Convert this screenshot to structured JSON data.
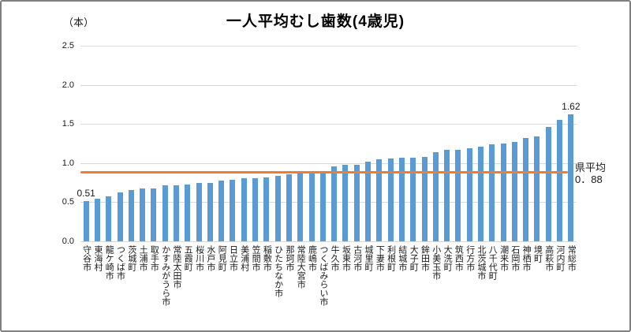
{
  "chart": {
    "title": "一人平均むし歯数(4歳児)",
    "unit_label": "（本）",
    "first_bar_label": "0.51",
    "last_bar_label": "1.62",
    "average_annotation_line1": "県平均",
    "average_annotation_line2": "0．88",
    "colors": {
      "bar": "#5b9bd5",
      "average_line": "#ed7d31",
      "gridline": "#d9d9d9",
      "border": "#7f7f7f",
      "text": "#1a1a1a"
    }
  },
  "chart_data": {
    "type": "bar",
    "title": "一人平均むし歯数(4歳児)",
    "ylabel": "（本）",
    "ylim": [
      0,
      2.5
    ],
    "ytick_values": [
      0.0,
      0.5,
      1.0,
      1.5,
      2.0,
      2.5
    ],
    "ytick_labels": [
      "0.0",
      "0.5",
      "1.0",
      "1.5",
      "2.0",
      "2.5"
    ],
    "grid": true,
    "legend": "none",
    "average_line": {
      "label": "県平均",
      "value": 0.88
    },
    "data_labels_shown": {
      "first": 0.51,
      "last": 1.62
    },
    "categories": [
      "守谷市",
      "東海村",
      "龍ケ崎市",
      "つくば市",
      "茨城町",
      "土浦市",
      "取手市",
      "かすみがうら市",
      "常陸太田市",
      "五霞町",
      "桜川市",
      "水戸市",
      "阿見町",
      "日立市",
      "美浦村",
      "笠間市",
      "稲敷市",
      "ひたちなか市",
      "那珂市",
      "常陸大宮市",
      "鹿嶋市",
      "つくばみらい市",
      "牛久市",
      "坂東市",
      "古河市",
      "城里町",
      "下妻市",
      "利根町",
      "結城市",
      "大子町",
      "鉾田市",
      "小美玉市",
      "大洗町",
      "筑西市",
      "行方市",
      "北茨城市",
      "八千代町",
      "潮来市",
      "石岡市",
      "神栖市",
      "境町",
      "高萩市",
      "河内町",
      "常総市"
    ],
    "values": [
      0.51,
      0.54,
      0.57,
      0.63,
      0.66,
      0.68,
      0.68,
      0.72,
      0.72,
      0.73,
      0.75,
      0.75,
      0.78,
      0.79,
      0.81,
      0.81,
      0.82,
      0.84,
      0.86,
      0.87,
      0.88,
      0.89,
      0.96,
      0.98,
      0.98,
      1.02,
      1.05,
      1.06,
      1.07,
      1.07,
      1.08,
      1.14,
      1.17,
      1.17,
      1.19,
      1.21,
      1.24,
      1.25,
      1.27,
      1.32,
      1.34,
      1.46,
      1.55,
      1.62
    ]
  }
}
